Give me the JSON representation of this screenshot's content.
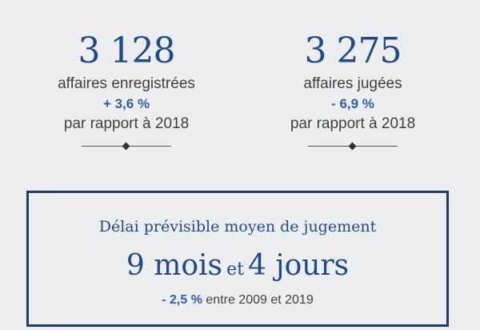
{
  "left_stat": {
    "value": "3 128",
    "label": "affaires enregistrées",
    "delta": "+ 3,6 %",
    "reference": "par rapport à 2018"
  },
  "right_stat": {
    "value": "3 275",
    "label": "affaires jugées",
    "delta": "- 6,9 %",
    "reference": "par rapport à 2018"
  },
  "delay_box": {
    "title": "Délai prévisible moyen de jugement",
    "value_part1": "9 mois",
    "connector": "et",
    "value_part2": "4 jours",
    "change": "- 2,5 %",
    "change_suffix": "entre 2009 et 2019"
  },
  "colors": {
    "accent": "#1f4a8e",
    "delta": "#2f5fa8",
    "border": "#1f3c6e",
    "background": "#eceef0"
  }
}
